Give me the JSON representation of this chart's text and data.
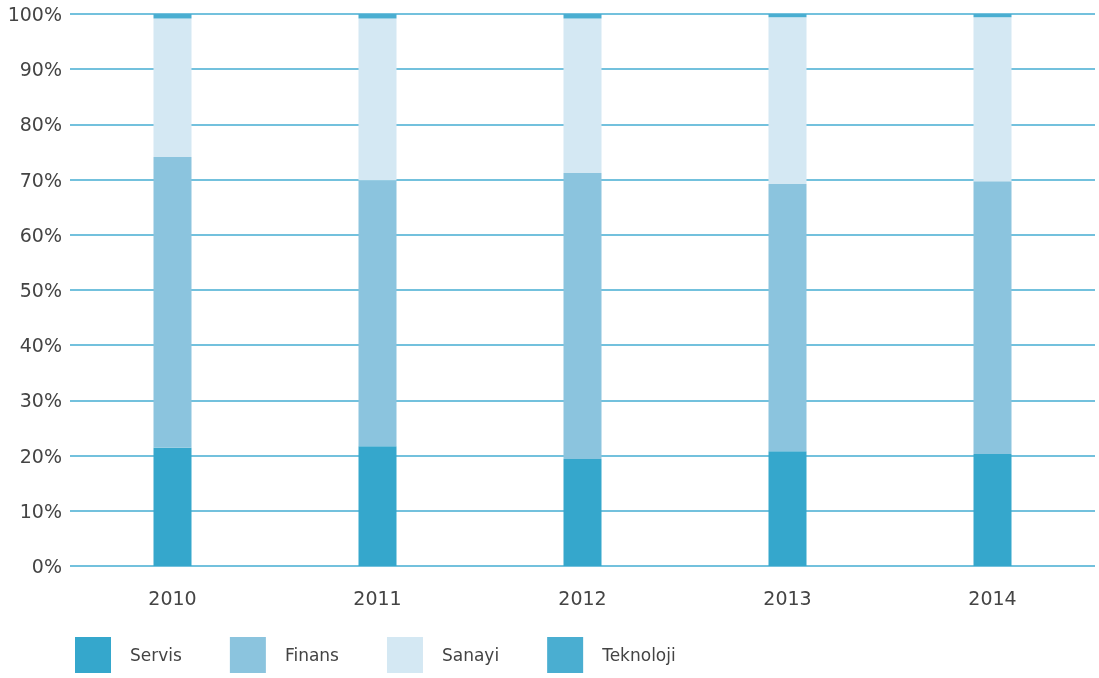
{
  "chart_data": {
    "type": "bar",
    "stacked": true,
    "categories": [
      "2010",
      "2011",
      "2012",
      "2013",
      "2014"
    ],
    "series": [
      {
        "name": "Servis",
        "color": "#35a7cc",
        "values": [
          21.4,
          21.7,
          19.4,
          20.8,
          20.3
        ]
      },
      {
        "name": "Finans",
        "color": "#8bc4de",
        "values": [
          52.7,
          48.2,
          51.8,
          48.4,
          49.4
        ]
      },
      {
        "name": "Sanayi",
        "color": "#d4e8f3",
        "values": [
          25.1,
          29.3,
          28.0,
          30.2,
          29.7
        ]
      },
      {
        "name": "Teknoloji",
        "color": "#4aaed1",
        "values": [
          0.8,
          0.8,
          0.8,
          0.6,
          0.6
        ]
      }
    ],
    "ylim": [
      0,
      100
    ],
    "yticks": [
      {
        "value": 0,
        "label": "0%"
      },
      {
        "value": 10,
        "label": "10%"
      },
      {
        "value": 20,
        "label": "20%"
      },
      {
        "value": 30,
        "label": "30%"
      },
      {
        "value": 40,
        "label": "40%"
      },
      {
        "value": 50,
        "label": "50%"
      },
      {
        "value": 60,
        "label": "60%"
      },
      {
        "value": 70,
        "label": "70%"
      },
      {
        "value": 80,
        "label": "80%"
      },
      {
        "value": 90,
        "label": "90%"
      },
      {
        "value": 100,
        "label": "100%"
      }
    ],
    "grid": "y",
    "legend": "bottom left"
  }
}
